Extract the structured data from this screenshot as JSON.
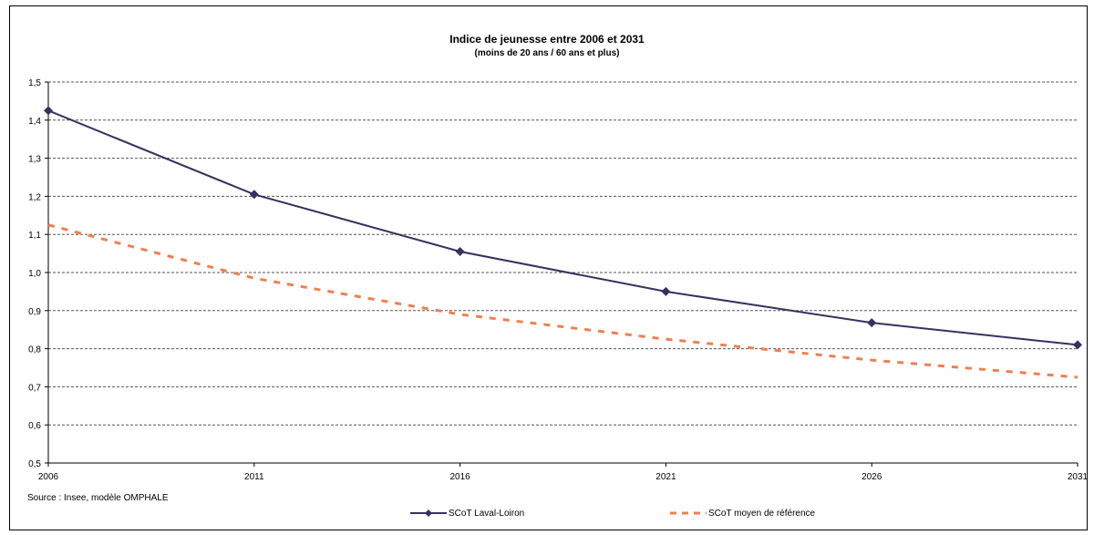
{
  "chart_data": {
    "type": "line",
    "title": "Indice de jeunesse entre 2006 et 2031",
    "subtitle": "(moins de 20 ans / 60 ans et plus)",
    "x": [
      "2006",
      "2011",
      "2016",
      "2021",
      "2026",
      "2031"
    ],
    "y_ticks": [
      "1,5",
      "1,4",
      "1,3",
      "1,2",
      "1,1",
      "1,0",
      "0,9",
      "0,8",
      "0,7",
      "0,6",
      "0,5"
    ],
    "ylim": [
      0.5,
      1.5
    ],
    "grid": true,
    "legend_position": "bottom",
    "series": [
      {
        "name": "SCoT Laval-Loiron",
        "values": [
          1.425,
          1.205,
          1.055,
          0.95,
          0.868,
          0.81
        ],
        "color": "#3b2f5e",
        "style": "solid-diamond"
      },
      {
        "name": "SCoT moyen de référence",
        "values": [
          1.125,
          0.985,
          0.89,
          0.825,
          0.77,
          0.725
        ],
        "color": "#f07f50",
        "style": "dashed"
      }
    ],
    "source": "Source : Insee, modèle OMPHALE"
  }
}
